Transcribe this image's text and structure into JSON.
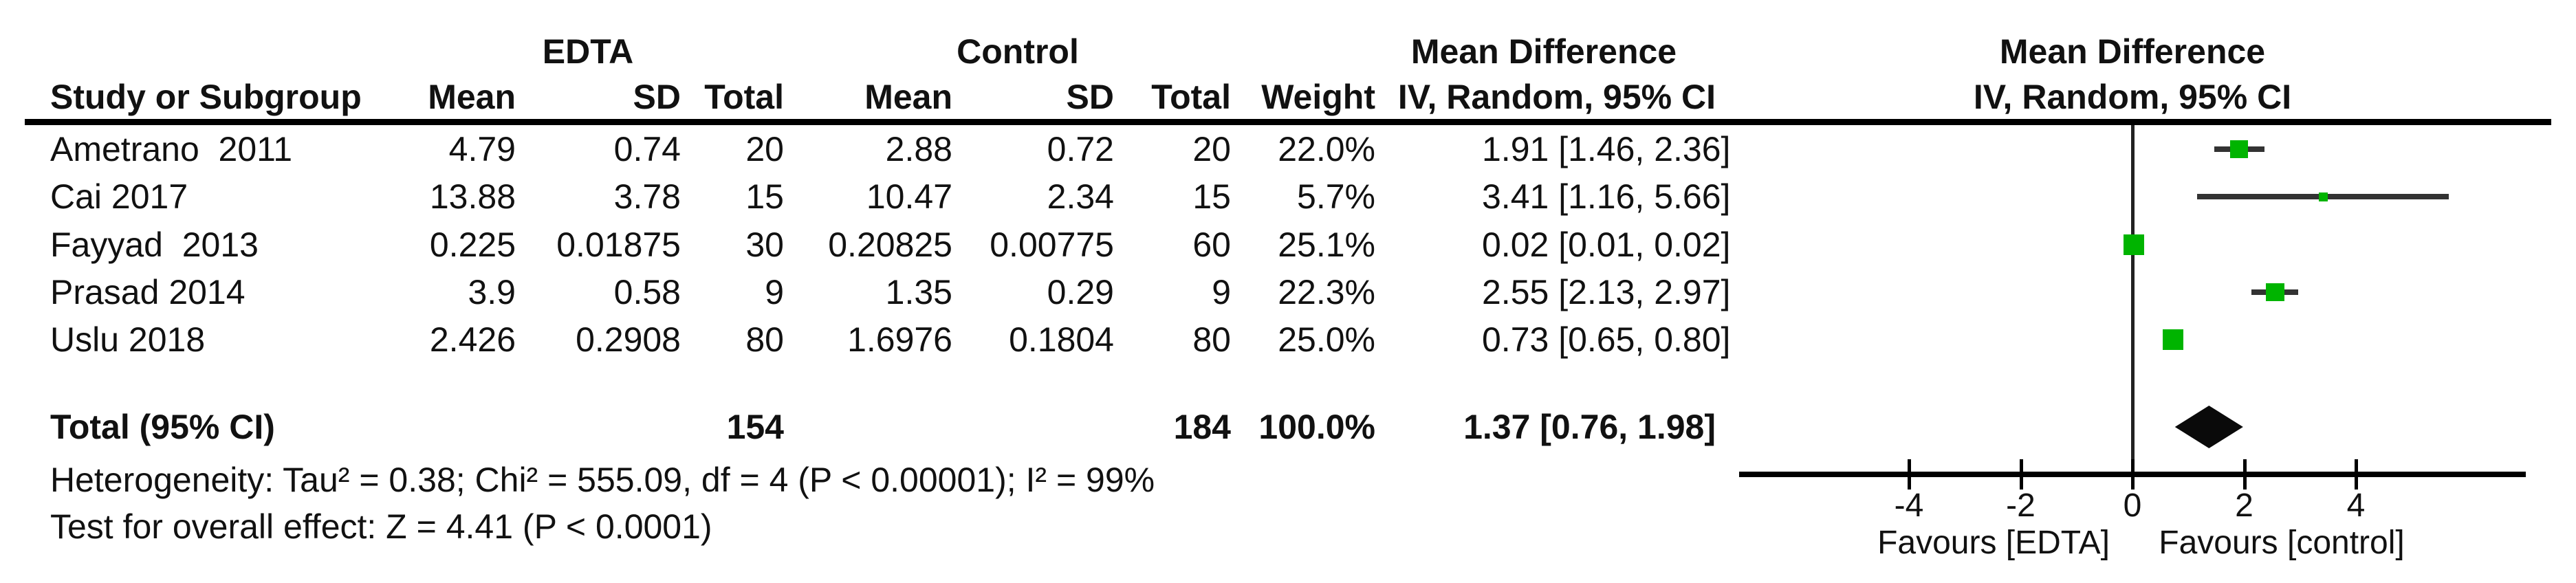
{
  "table": {
    "group_headers": {
      "edta": "EDTA",
      "control": "Control",
      "mean_difference": "Mean Difference"
    },
    "column_headers": {
      "study": "Study or Subgroup",
      "mean": "Mean",
      "sd": "SD",
      "total": "Total",
      "weight": "Weight",
      "ci": "IV, Random, 95% CI"
    },
    "rows": [
      {
        "study": "Ametrano  2011",
        "mean_e": "4.79",
        "sd_e": "0.74",
        "n_e": "20",
        "mean_c": "2.88",
        "sd_c": "0.72",
        "n_c": "20",
        "weight": "22.0%",
        "ci": "1.91 [1.46, 2.36]"
      },
      {
        "study": "Cai 2017",
        "mean_e": "13.88",
        "sd_e": "3.78",
        "n_e": "15",
        "mean_c": "10.47",
        "sd_c": "2.34",
        "n_c": "15",
        "weight": "5.7%",
        "ci": "3.41 [1.16, 5.66]"
      },
      {
        "study": "Fayyad  2013",
        "mean_e": "0.225",
        "sd_e": "0.01875",
        "n_e": "30",
        "mean_c": "0.20825",
        "sd_c": "0.00775",
        "n_c": "60",
        "weight": "25.1%",
        "ci": "0.02 [0.01, 0.02]"
      },
      {
        "study": "Prasad 2014",
        "mean_e": "3.9",
        "sd_e": "0.58",
        "n_e": "9",
        "mean_c": "1.35",
        "sd_c": "0.29",
        "n_c": "9",
        "weight": "22.3%",
        "ci": "2.55 [2.13, 2.97]"
      },
      {
        "study": "Uslu 2018",
        "mean_e": "2.426",
        "sd_e": "0.2908",
        "n_e": "80",
        "mean_c": "1.6976",
        "sd_c": "0.1804",
        "n_c": "80",
        "weight": "25.0%",
        "ci": "0.73 [0.65, 0.80]"
      }
    ],
    "total_row": {
      "label": "Total (95% CI)",
      "n_e": "154",
      "n_c": "184",
      "weight": "100.0%",
      "ci": "1.37 [0.76, 1.98]"
    },
    "footnotes": [
      "Heterogeneity: Tau² = 0.38; Chi² = 555.09, df = 4 (P < 0.00001); I² = 99%",
      "Test for overall effect: Z = 4.41 (P < 0.0001)"
    ]
  },
  "plot_headers": {
    "line1": "Mean Difference",
    "line2": "IV, Random, 95% CI"
  },
  "chart_data": {
    "type": "forest",
    "title": "Mean Difference — IV, Random, 95% CI (EDTA vs Control)",
    "x_ticks": [
      -4,
      -2,
      0,
      2,
      4
    ],
    "x_axis_range": [
      -7.05,
      7.05
    ],
    "favours_left": "Favours [EDTA]",
    "favours_right": "Favours [control]",
    "studies": [
      {
        "name": "Ametrano 2011",
        "md": 1.91,
        "ci_low": 1.46,
        "ci_high": 2.36,
        "weight_pct": 22.0
      },
      {
        "name": "Cai 2017",
        "md": 3.41,
        "ci_low": 1.16,
        "ci_high": 5.66,
        "weight_pct": 5.7
      },
      {
        "name": "Fayyad 2013",
        "md": 0.02,
        "ci_low": 0.01,
        "ci_high": 0.02,
        "weight_pct": 25.1
      },
      {
        "name": "Prasad 2014",
        "md": 2.55,
        "ci_low": 2.13,
        "ci_high": 2.97,
        "weight_pct": 22.3
      },
      {
        "name": "Uslu 2018",
        "md": 0.73,
        "ci_low": 0.65,
        "ci_high": 0.8,
        "weight_pct": 25.0
      }
    ],
    "overall": {
      "label": "Total (95% CI)",
      "md": 1.37,
      "ci_low": 0.76,
      "ci_high": 1.98
    }
  },
  "colors": {
    "marker_green": "#00b400",
    "diamond_black": "#0a0a0a",
    "ci_line": "#333333",
    "axis_black": "#000000"
  }
}
